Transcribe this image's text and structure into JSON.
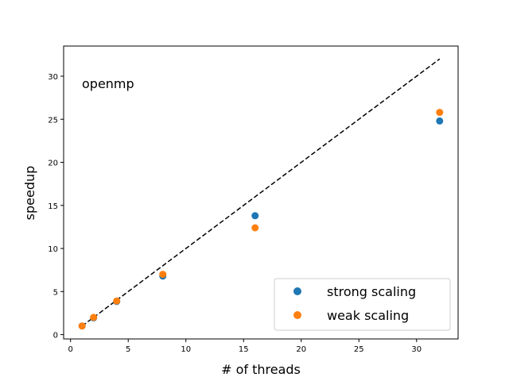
{
  "chart_data": {
    "type": "scatter",
    "xlabel": "# of threads",
    "ylabel": "speedup",
    "annotation": "openmp",
    "xlim": [
      -0.6,
      33.6
    ],
    "ylim": [
      -0.5,
      33.5
    ],
    "xticks": [
      0,
      5,
      10,
      15,
      20,
      25,
      30
    ],
    "yticks": [
      0,
      5,
      10,
      15,
      20,
      25,
      30
    ],
    "grid": false,
    "legend_position": "lower-right",
    "ideal_line": {
      "x": [
        1,
        32
      ],
      "y": [
        1,
        32
      ],
      "style": "dashed",
      "color": "#000000"
    },
    "series": [
      {
        "name": "strong scaling",
        "color": "#1f77b4",
        "x": [
          1,
          2,
          4,
          8,
          16,
          32
        ],
        "y": [
          1.0,
          1.95,
          3.85,
          6.8,
          13.8,
          24.8
        ]
      },
      {
        "name": "weak scaling",
        "color": "#ff7f0e",
        "x": [
          1,
          2,
          4,
          8,
          16,
          32
        ],
        "y": [
          1.0,
          2.0,
          3.9,
          7.0,
          12.4,
          25.8
        ]
      }
    ]
  }
}
